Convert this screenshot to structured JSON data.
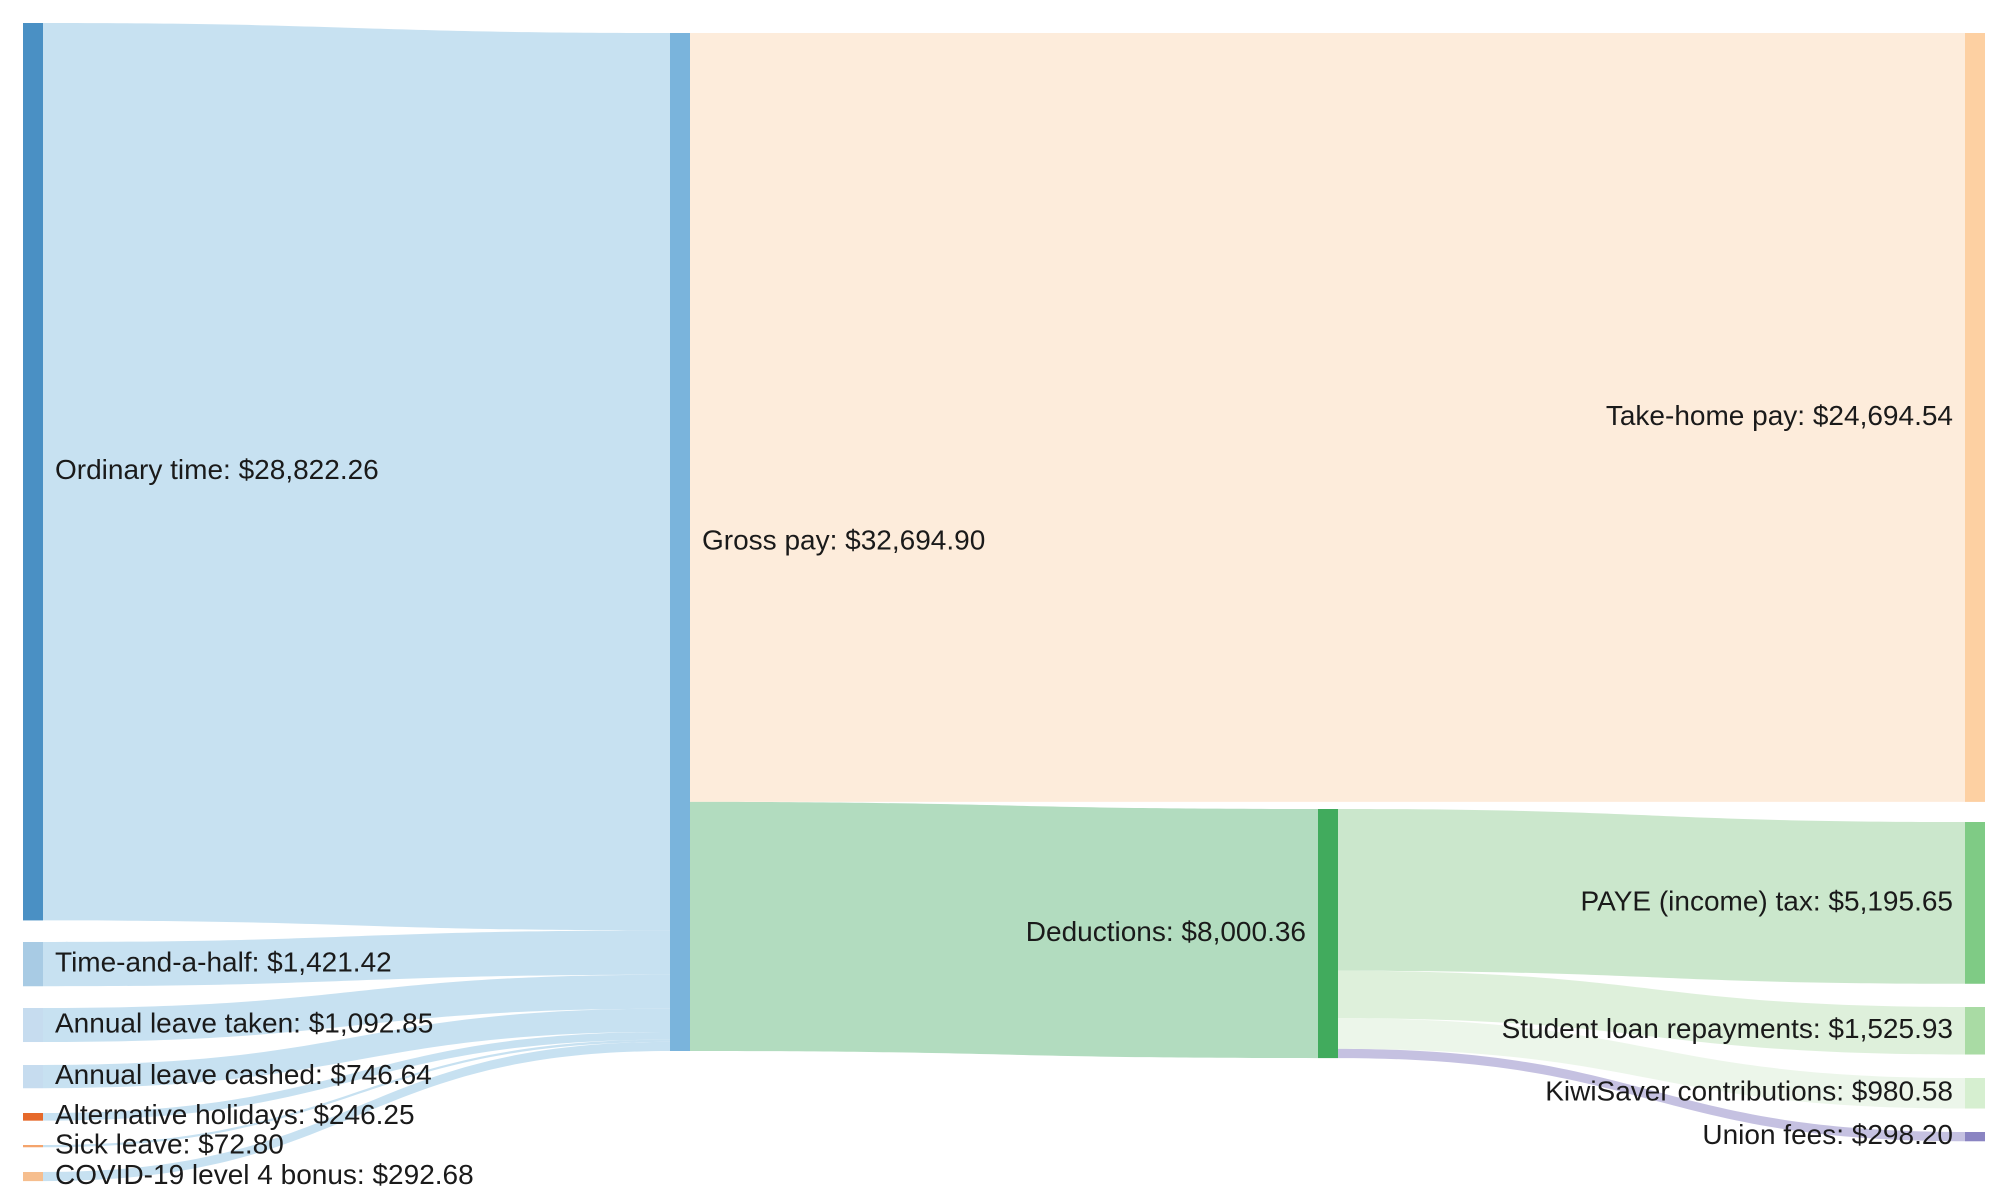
{
  "chart_data": {
    "type": "sankey",
    "nodes": [
      {
        "id": "ordinary",
        "label": "Ordinary time: $28,822.26",
        "value": 28822.26,
        "color": "#4a90c4"
      },
      {
        "id": "tah",
        "label": "Time-and-a-half: $1,421.42",
        "value": 1421.42,
        "color": "#a8cbe4"
      },
      {
        "id": "alt",
        "label": "Annual leave taken: $1,092.85",
        "value": 1092.85,
        "color": "#c6dcef"
      },
      {
        "id": "alc",
        "label": "Annual leave cashed: $746.64",
        "value": 746.64,
        "color": "#c6dcef"
      },
      {
        "id": "althol",
        "label": "Alternative holidays: $246.25",
        "value": 246.25,
        "color": "#e6692a"
      },
      {
        "id": "sick",
        "label": "Sick leave: $72.80",
        "value": 72.8,
        "color": "#f4a46c"
      },
      {
        "id": "covid",
        "label": "COVID-19 level 4 bonus: $292.68",
        "value": 292.68,
        "color": "#f6be8e"
      },
      {
        "id": "gross",
        "label": "Gross pay: $32,694.90",
        "value": 32694.9,
        "color": "#7ab4dc"
      },
      {
        "id": "takehome",
        "label": "Take-home pay: $24,694.54",
        "value": 24694.54,
        "color": "#fdd0a2"
      },
      {
        "id": "deductions",
        "label": "Deductions: $8,000.36",
        "value": 8000.36,
        "color": "#41ab5d"
      },
      {
        "id": "paye",
        "label": "PAYE (income) tax: $5,195.65",
        "value": 5195.65,
        "color": "#7fcb85"
      },
      {
        "id": "student",
        "label": "Student loan repayments: $1,525.93",
        "value": 1525.93,
        "color": "#a9dba4"
      },
      {
        "id": "kiwi",
        "label": "KiwiSaver contributions: $980.58",
        "value": 980.58,
        "color": "#d6efd0"
      },
      {
        "id": "union",
        "label": "Union fees: $298.20",
        "value": 298.2,
        "color": "#8a84c2"
      }
    ],
    "links": [
      {
        "source": "ordinary",
        "target": "gross",
        "value": 28822.26,
        "color": "#c4dff0"
      },
      {
        "source": "tah",
        "target": "gross",
        "value": 1421.42,
        "color": "#c4dff0"
      },
      {
        "source": "alt",
        "target": "gross",
        "value": 1092.85,
        "color": "#c4dff0"
      },
      {
        "source": "alc",
        "target": "gross",
        "value": 746.64,
        "color": "#c4dff0"
      },
      {
        "source": "althol",
        "target": "gross",
        "value": 246.25,
        "color": "#c4dff0"
      },
      {
        "source": "sick",
        "target": "gross",
        "value": 72.8,
        "color": "#c4dff0"
      },
      {
        "source": "covid",
        "target": "gross",
        "value": 292.68,
        "color": "#c4dff0"
      },
      {
        "source": "gross",
        "target": "takehome",
        "value": 24694.54,
        "color": "#fdebd9"
      },
      {
        "source": "gross",
        "target": "deductions",
        "value": 8000.36,
        "color": "#aedabc"
      },
      {
        "source": "deductions",
        "target": "paye",
        "value": 5195.65,
        "color": "#c8e6c9"
      },
      {
        "source": "deductions",
        "target": "student",
        "value": 1525.93,
        "color": "#dcefd9"
      },
      {
        "source": "deductions",
        "target": "kiwi",
        "value": 980.58,
        "color": "#ebf6e9"
      },
      {
        "source": "deductions",
        "target": "union",
        "value": 298.2,
        "color": "#c2bedf"
      }
    ]
  }
}
